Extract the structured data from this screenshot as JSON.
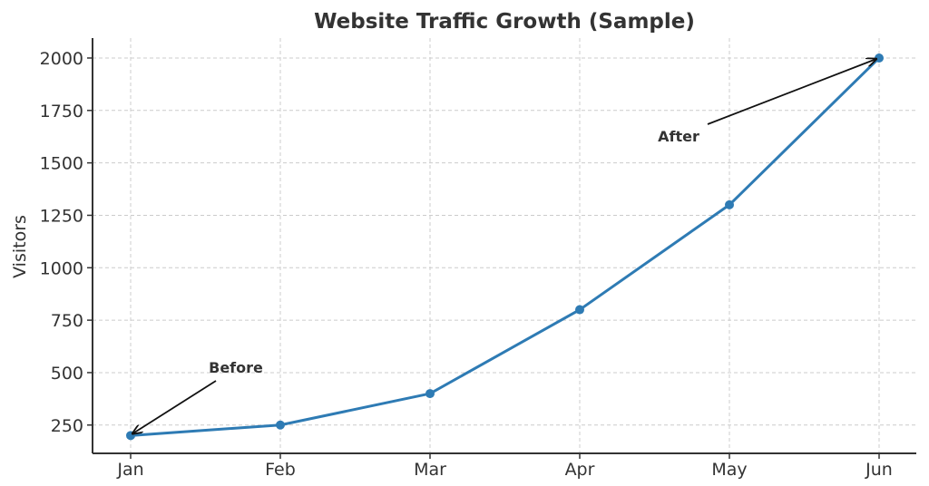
{
  "chart_data": {
    "type": "line",
    "title": "Website Traffic Growth (Sample)",
    "xlabel": "",
    "ylabel": "Visitors",
    "categories": [
      "Jan",
      "Feb",
      "Mar",
      "Apr",
      "May",
      "Jun"
    ],
    "series": [
      {
        "values": [
          200,
          250,
          400,
          800,
          1300,
          2000
        ],
        "color": "#2e7bb4"
      }
    ],
    "ylim": [
      115,
      2095
    ],
    "yticks": [
      250,
      500,
      750,
      1000,
      1250,
      1500,
      1750,
      2000
    ],
    "grid": true,
    "annotations": [
      {
        "text": "Before",
        "point": [
          "Jan",
          200
        ],
        "text_pos": [
          "Jan-Feb",
          520
        ]
      },
      {
        "text": "After",
        "point": [
          "Jun",
          2000
        ],
        "text_pos": [
          "Apr-May",
          1600
        ]
      }
    ]
  }
}
